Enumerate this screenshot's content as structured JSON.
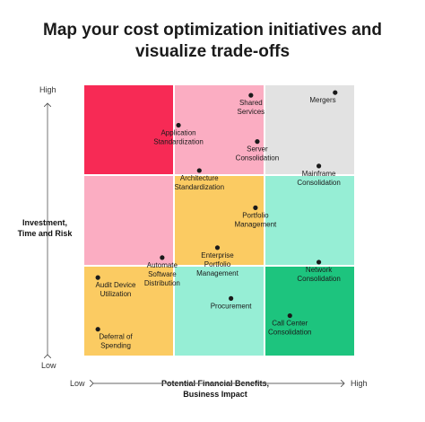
{
  "title_lines": [
    "Map your cost optimization initiatives and",
    "visualize trade-offs"
  ],
  "axes": {
    "y_high": "High",
    "y_low": "Low",
    "y_label_lines": [
      "Investment,",
      "Time and Risk"
    ],
    "x_low": "Low",
    "x_high": "High",
    "x_label_lines": [
      "Potential Financial Benefits,",
      "Business Impact"
    ]
  },
  "chart_data": {
    "type": "scatter",
    "grid": "3x3",
    "xlim": [
      0,
      3
    ],
    "ylim": [
      0,
      3
    ],
    "cell_colors": [
      [
        "#f72a55",
        "#fbadc2",
        "#e2e2e2"
      ],
      [
        "#fbadc2",
        "#fbcb62",
        "#96eed5"
      ],
      [
        "#fbcb62",
        "#96eed5",
        "#1dc47e"
      ]
    ],
    "points": [
      {
        "label_lines": [
          "Shared",
          "Services"
        ],
        "x": 1.85,
        "y": 2.88,
        "anchor": "below"
      },
      {
        "label_lines": [
          "Mergers"
        ],
        "x": 2.78,
        "y": 2.91,
        "anchor": "below"
      },
      {
        "label_lines": [
          "Application",
          "Standardization"
        ],
        "x": 1.05,
        "y": 2.55,
        "anchor": "below"
      },
      {
        "label_lines": [
          "Server",
          "Consolidation"
        ],
        "x": 1.92,
        "y": 2.37,
        "anchor": "below"
      },
      {
        "label_lines": [
          "Mainframe",
          "Consolidation"
        ],
        "x": 2.6,
        "y": 2.1,
        "anchor": "below"
      },
      {
        "label_lines": [
          "Architecture",
          "Standardization"
        ],
        "x": 1.28,
        "y": 2.05,
        "anchor": "below"
      },
      {
        "label_lines": [
          "Portfolio",
          "Management"
        ],
        "x": 1.9,
        "y": 1.64,
        "anchor": "below"
      },
      {
        "label_lines": [
          "Enterprise",
          "Portfolio",
          "Management"
        ],
        "x": 1.48,
        "y": 1.2,
        "anchor": "below"
      },
      {
        "label_lines": [
          "Automate",
          "Software",
          "Distribution"
        ],
        "x": 0.87,
        "y": 1.09,
        "anchor": "below"
      },
      {
        "label_lines": [
          "Network",
          "Consolidation"
        ],
        "x": 2.6,
        "y": 1.04,
        "anchor": "below"
      },
      {
        "label_lines": [
          "Audit Device",
          "Utilization"
        ],
        "x": 0.16,
        "y": 0.87,
        "anchor": "below"
      },
      {
        "label_lines": [
          "Procurement"
        ],
        "x": 1.63,
        "y": 0.64,
        "anchor": "below"
      },
      {
        "label_lines": [
          "Deferral of",
          "Spending"
        ],
        "x": 0.16,
        "y": 0.3,
        "anchor": "below"
      },
      {
        "label_lines": [
          "Call Center",
          "Consolidation"
        ],
        "x": 2.28,
        "y": 0.45,
        "anchor": "below"
      }
    ]
  }
}
